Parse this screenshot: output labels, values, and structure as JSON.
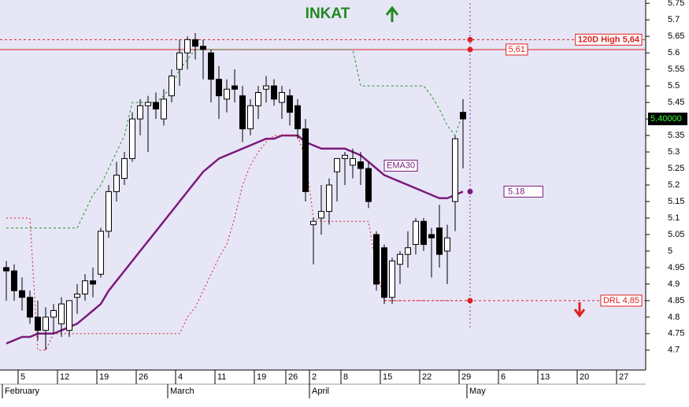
{
  "chart_data": {
    "type": "candlestick",
    "title": "INKAT",
    "xlim": [
      -0.5,
      81.2
    ],
    "ylim": [
      4.64,
      5.76
    ],
    "yticks": [
      5.75,
      5.7,
      5.65,
      5.6,
      5.55,
      5.5,
      5.45,
      5.4,
      5.35,
      5.3,
      5.25,
      5.2,
      5.15,
      5.1,
      5.05,
      5.0,
      4.95,
      4.9,
      4.85,
      4.8,
      4.75,
      4.7
    ],
    "xticks": [
      {
        "value": 2,
        "label": "5"
      },
      {
        "value": 7,
        "label": "12"
      },
      {
        "value": 12,
        "label": "19"
      },
      {
        "value": 17,
        "label": "26"
      },
      {
        "value": 22,
        "label": "4"
      },
      {
        "value": 27,
        "label": "11"
      },
      {
        "value": 32,
        "label": "19"
      },
      {
        "value": 36,
        "label": "26"
      },
      {
        "value": 39,
        "label": "2"
      },
      {
        "value": 43,
        "label": "8"
      },
      {
        "value": 48,
        "label": "15"
      },
      {
        "value": 53,
        "label": "22"
      },
      {
        "value": 58,
        "label": "29"
      },
      {
        "value": 63,
        "label": "6"
      },
      {
        "value": 68,
        "label": "13"
      },
      {
        "value": 73,
        "label": "20"
      },
      {
        "value": 78,
        "label": "27"
      }
    ],
    "month_ticks": [
      {
        "value": 0,
        "label": "February"
      },
      {
        "value": 21,
        "label": "March"
      },
      {
        "value": 39,
        "label": "April"
      },
      {
        "value": 59,
        "label": "May"
      }
    ],
    "candles": {
      "open": [
        4.95,
        4.94,
        4.88,
        4.86,
        4.8,
        4.76,
        4.8,
        4.78,
        4.76,
        4.86,
        4.87,
        4.91,
        4.93,
        5.06,
        5.18,
        5.22,
        5.28,
        5.4,
        5.44,
        5.45,
        5.4,
        5.47,
        5.55,
        5.6,
        5.64,
        5.62,
        5.6,
        5.52,
        5.46,
        5.5,
        5.47,
        5.37,
        5.44,
        5.49,
        5.5,
        5.45,
        5.47,
        5.44,
        5.37,
        5.08,
        5.1,
        5.12,
        5.24,
        5.28,
        5.26,
        5.27,
        5.25,
        5.05,
        5.01,
        4.86,
        4.96,
        4.99,
        5.02,
        5.09,
        5.05,
        5.07,
        5.0,
        5.15,
        5.42
      ],
      "high": [
        4.97,
        4.96,
        4.92,
        4.88,
        4.85,
        4.83,
        4.84,
        4.86,
        4.85,
        4.9,
        4.93,
        4.95,
        5.07,
        5.2,
        5.27,
        5.3,
        5.42,
        5.46,
        5.47,
        5.48,
        5.49,
        5.55,
        5.64,
        5.65,
        5.66,
        5.64,
        5.61,
        5.56,
        5.52,
        5.55,
        5.5,
        5.46,
        5.5,
        5.53,
        5.52,
        5.5,
        5.49,
        5.46,
        5.4,
        5.1,
        5.2,
        5.22,
        5.28,
        5.3,
        5.31,
        5.3,
        5.27,
        5.06,
        5.02,
        4.98,
        5.0,
        5.06,
        5.1,
        5.1,
        5.07,
        5.14,
        5.08,
        5.35,
        5.46
      ],
      "low": [
        4.85,
        4.85,
        4.82,
        4.78,
        4.73,
        4.7,
        4.75,
        4.74,
        4.74,
        4.81,
        4.85,
        4.86,
        4.92,
        5.04,
        5.15,
        5.2,
        5.27,
        5.35,
        5.3,
        5.4,
        5.38,
        5.45,
        5.5,
        5.55,
        5.58,
        5.52,
        5.45,
        5.4,
        5.42,
        5.45,
        5.33,
        5.35,
        5.4,
        5.45,
        5.44,
        5.4,
        5.38,
        5.34,
        5.15,
        4.96,
        5.05,
        5.08,
        5.15,
        5.2,
        5.22,
        5.2,
        5.13,
        4.88,
        4.84,
        4.84,
        4.9,
        4.95,
        4.99,
        5.0,
        4.92,
        4.95,
        4.9,
        5.06,
        5.25
      ],
      "close": [
        4.94,
        4.88,
        4.86,
        4.8,
        4.76,
        4.8,
        4.82,
        4.84,
        4.85,
        4.87,
        4.91,
        4.9,
        5.06,
        5.18,
        5.23,
        5.28,
        5.4,
        5.44,
        5.45,
        5.43,
        5.46,
        5.53,
        5.6,
        5.64,
        5.62,
        5.61,
        5.52,
        5.47,
        5.49,
        5.49,
        5.37,
        5.44,
        5.48,
        5.5,
        5.46,
        5.48,
        5.42,
        5.37,
        5.18,
        5.09,
        5.12,
        5.2,
        5.28,
        5.29,
        5.28,
        5.25,
        5.15,
        4.9,
        4.86,
        4.97,
        4.99,
        5.01,
        5.09,
        5.02,
        5.04,
        4.99,
        5.04,
        5.34,
        5.4
      ]
    },
    "series": [
      {
        "name": "EMA30",
        "color": "#7b1a7b",
        "values": [
          4.72,
          4.73,
          4.74,
          4.74,
          4.75,
          4.75,
          4.75,
          4.76,
          4.77,
          4.78,
          4.8,
          4.82,
          4.84,
          4.88,
          4.91,
          4.94,
          4.97,
          5.0,
          5.03,
          5.06,
          5.09,
          5.12,
          5.15,
          5.18,
          5.21,
          5.24,
          5.26,
          5.28,
          5.29,
          5.3,
          5.31,
          5.32,
          5.33,
          5.34,
          5.34,
          5.35,
          5.35,
          5.35,
          5.33,
          5.32,
          5.31,
          5.31,
          5.31,
          5.31,
          5.3,
          5.29,
          5.27,
          5.25,
          5.23,
          5.22,
          5.21,
          5.2,
          5.19,
          5.18,
          5.17,
          5.16,
          5.16,
          5.17,
          5.18
        ]
      },
      {
        "color": "#1f9a1f",
        "values": [
          5.07,
          5.07,
          5.07,
          5.07,
          5.07,
          5.07,
          5.07,
          5.07,
          5.07,
          5.07,
          5.12,
          5.17,
          5.2,
          5.25,
          5.3,
          5.35,
          5.45,
          5.45,
          5.45,
          5.45,
          5.47,
          5.5,
          5.55,
          5.58,
          5.61,
          5.61,
          5.61,
          5.61,
          5.61,
          5.61,
          5.61,
          5.61,
          5.61,
          5.61,
          5.61,
          5.61,
          5.61,
          5.61,
          5.61,
          5.61,
          5.61,
          5.61,
          5.61,
          5.61,
          5.61,
          5.5,
          5.5,
          5.5,
          5.5,
          5.5,
          5.5,
          5.5,
          5.5,
          5.5,
          5.47,
          5.43,
          5.38,
          5.35,
          5.42
        ]
      },
      {
        "color": "#e02020",
        "values": [
          5.1,
          5.1,
          5.1,
          5.1,
          4.7,
          4.7,
          4.75,
          4.75,
          4.75,
          4.75,
          4.75,
          4.75,
          4.75,
          4.75,
          4.75,
          4.75,
          4.75,
          4.75,
          4.75,
          4.75,
          4.75,
          4.75,
          4.75,
          4.8,
          4.83,
          4.88,
          4.93,
          4.98,
          5.02,
          5.1,
          5.2,
          5.26,
          5.3,
          5.33,
          5.35,
          5.35,
          5.35,
          5.35,
          5.28,
          5.1,
          5.09,
          5.09,
          5.09,
          5.09,
          5.09,
          5.09,
          5.09,
          4.95,
          4.85,
          4.85,
          4.85,
          4.85,
          4.85,
          4.85,
          4.85,
          4.85,
          4.85,
          4.85,
          4.85
        ]
      }
    ],
    "levels": [
      {
        "value": 5.64,
        "label": "120D High 5,64",
        "color": "#e02020",
        "dashed": true
      },
      {
        "value": 5.61,
        "label": "5,61",
        "color": "#e02020",
        "dashed": false
      },
      {
        "value": 4.85,
        "label": "DRL 4,85",
        "color": "#e02020",
        "dashed": true
      }
    ],
    "ema_value": 5.18,
    "last_price": {
      "value": 5.4,
      "label": "5.40000"
    }
  }
}
